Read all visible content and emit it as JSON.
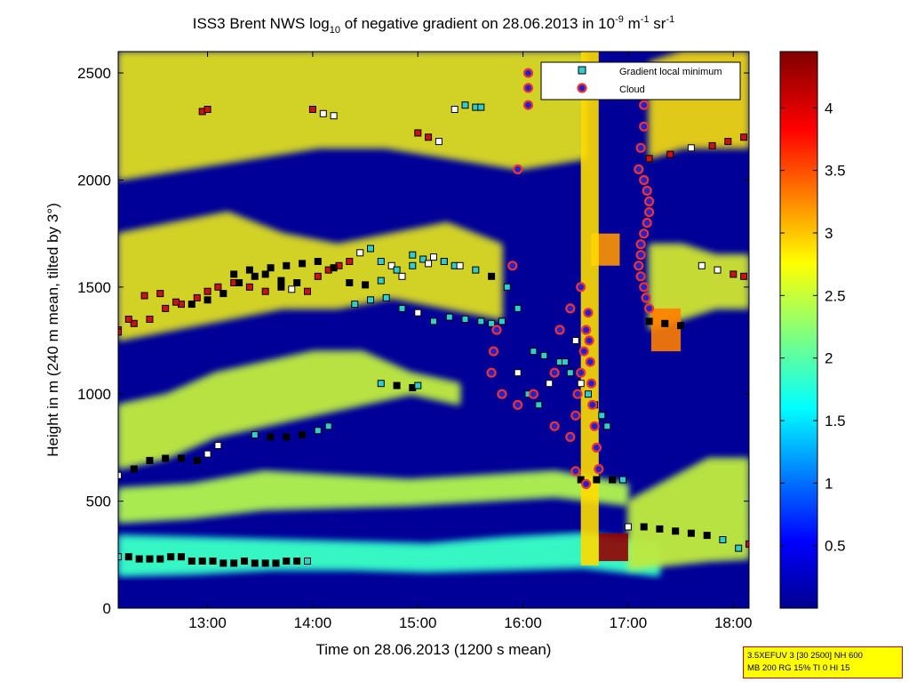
{
  "chart_data": {
    "type": "heatmap",
    "title": {
      "pre": "ISS3 Brent NWS log",
      "sub": "10",
      "mid": " of negative gradient on 28.06.2013 in 10",
      "exp1": "-9",
      "unit1": " m",
      "exp2": "-1",
      "unit2": " sr",
      "exp3": "-1"
    },
    "xlabel": "Time on 28.06.2013 (1200 s mean)",
    "ylabel": "Height in m (240 m mean, tilted by 3°)",
    "xlim": [
      12.15,
      18.15
    ],
    "ylim": [
      0,
      2600
    ],
    "xticks": [
      {
        "value": 13,
        "label": "13:00"
      },
      {
        "value": 14,
        "label": "14:00"
      },
      {
        "value": 15,
        "label": "15:00"
      },
      {
        "value": 16,
        "label": "16:00"
      },
      {
        "value": 17,
        "label": "17:00"
      },
      {
        "value": 18,
        "label": "18:00"
      }
    ],
    "yticks": [
      {
        "value": 0,
        "label": "0"
      },
      {
        "value": 500,
        "label": "500"
      },
      {
        "value": 1000,
        "label": "1000"
      },
      {
        "value": 1500,
        "label": "1500"
      },
      {
        "value": 2000,
        "label": "2000"
      },
      {
        "value": 2500,
        "label": "2500"
      }
    ],
    "colorbar": {
      "range": [
        0,
        4.45
      ],
      "ticks": [
        {
          "value": 0.5,
          "label": "0.5"
        },
        {
          "value": 1,
          "label": "1"
        },
        {
          "value": 1.5,
          "label": "1.5"
        },
        {
          "value": 2,
          "label": "2"
        },
        {
          "value": 2.5,
          "label": "2.5"
        },
        {
          "value": 3,
          "label": "3"
        },
        {
          "value": 3.5,
          "label": "3.5"
        },
        {
          "value": 4,
          "label": "4"
        }
      ]
    },
    "legend": {
      "placement": "top-right",
      "entries": [
        {
          "label": "Gradient local minimum",
          "marker": "square",
          "color": "#33cccc"
        },
        {
          "label": "Cloud",
          "marker": "circle",
          "color": "#dd0000"
        }
      ]
    },
    "colors": {
      "background_field": "#000098",
      "min_marker_white": "#ffffff",
      "min_marker_cyan": "#33cccc",
      "min_marker_red": "#cc1111",
      "min_marker_black": "#000000",
      "cloud_fill": "#2222cc",
      "cloud_ring": "#ee3333"
    },
    "field_bands": [
      {
        "x": [
          12.15,
          16.6
        ],
        "y0": [
          2000,
          2050,
          2100,
          2150,
          2150,
          2100,
          2050,
          2100
        ],
        "y1": [
          2600,
          2600,
          2600,
          2600,
          2600,
          2600,
          2600,
          2600
        ],
        "level": 2.5
      },
      {
        "x": [
          12.15,
          15.8
        ],
        "y0": [
          1250,
          1300,
          1350,
          1400,
          1400,
          1450,
          1400,
          1350
        ],
        "y1": [
          1750,
          1800,
          1850,
          1750,
          1700,
          1750,
          1800,
          1700
        ],
        "level": 2.5
      },
      {
        "x": [
          12.15,
          15.4
        ],
        "y0": [
          650,
          700,
          800,
          850,
          900,
          950,
          1000,
          950
        ],
        "y1": [
          950,
          1000,
          1100,
          1150,
          1200,
          1200,
          1100,
          1050
        ],
        "level": 2.3
      },
      {
        "x": [
          12.15,
          17.0
        ],
        "y0": [
          400,
          420,
          460,
          470,
          480,
          500,
          520,
          480
        ],
        "y1": [
          560,
          580,
          640,
          620,
          600,
          620,
          640,
          580
        ],
        "level": 2.2
      },
      {
        "x": [
          12.15,
          17.3
        ],
        "y0": [
          150,
          160,
          180,
          180,
          170,
          180,
          190,
          150
        ],
        "y1": [
          340,
          330,
          320,
          310,
          300,
          330,
          350,
          300
        ],
        "level": 1.6
      },
      {
        "x": [
          17.0,
          18.15
        ],
        "y0": [
          180,
          200,
          220,
          230
        ],
        "y1": [
          500,
          600,
          700,
          700
        ],
        "level": 2.3
      },
      {
        "x": [
          17.2,
          18.15
        ],
        "y0": [
          1300,
          1350,
          1400,
          1400
        ],
        "y1": [
          1700,
          1700,
          1650,
          1650
        ],
        "level": 2.4
      },
      {
        "x": [
          17.2,
          18.15
        ],
        "y0": [
          2100,
          2150,
          2150,
          2150
        ],
        "y1": [
          2550,
          2600,
          2600,
          2600
        ],
        "level": 2.6
      }
    ],
    "field_cells": [
      {
        "x": [
          16.65,
          16.92
        ],
        "y": [
          1600,
          1750
        ],
        "level": 3.2
      },
      {
        "x": [
          17.22,
          17.5
        ],
        "y": [
          1200,
          1400
        ],
        "level": 3.3
      },
      {
        "x": [
          16.72,
          17.0
        ],
        "y": [
          220,
          350
        ],
        "level": 4.35
      },
      {
        "x": [
          16.55,
          16.72
        ],
        "y": [
          200,
          2600
        ],
        "level": 2.9
      }
    ],
    "series": [
      {
        "name": "Gradient local minimum",
        "marker": "square",
        "x": [
          12.15,
          12.25,
          12.35,
          12.45,
          12.55,
          12.65,
          12.75,
          12.85,
          12.95,
          13.05,
          13.15,
          13.25,
          13.35,
          13.45,
          13.55,
          13.65,
          13.75,
          13.85,
          13.95,
          12.15,
          12.3,
          12.45,
          12.6,
          12.75,
          12.9,
          13.0,
          13.1,
          13.25,
          13.4,
          13.55,
          13.7,
          13.85,
          13.95,
          14.05,
          14.15,
          14.25,
          14.35,
          14.45,
          14.55,
          14.65,
          14.75,
          14.85,
          14.95,
          15.05,
          15.15,
          15.25,
          15.35,
          12.15,
          12.3,
          12.45,
          12.6,
          12.75,
          12.9,
          13.0,
          13.1,
          13.25,
          13.4,
          13.55,
          13.7,
          13.8,
          12.15,
          12.25,
          12.4,
          12.55,
          12.7,
          12.85,
          13.0,
          13.15,
          13.3,
          13.45,
          13.6,
          13.75,
          13.9,
          14.05,
          14.2,
          14.35,
          14.5,
          14.65,
          14.8,
          14.95,
          15.1,
          15.25,
          15.4,
          15.55,
          15.7,
          15.85,
          15.95,
          13.45,
          13.6,
          13.75,
          13.9,
          14.05,
          14.15,
          14.65,
          14.8,
          14.95,
          15.0,
          14.4,
          14.55,
          14.7,
          14.85,
          15.0,
          15.15,
          15.3,
          15.45,
          15.6,
          15.7,
          15.8,
          16.55,
          16.7,
          16.85,
          16.95,
          17.0,
          17.15,
          17.3,
          17.45,
          17.6,
          17.75,
          17.9,
          18.05,
          18.15,
          17.2,
          17.35,
          17.5,
          12.95,
          13.0,
          14.0,
          14.1,
          14.2,
          15.35,
          15.45,
          15.55,
          15.6,
          15.0,
          15.1,
          15.2,
          17.2,
          17.4,
          17.6,
          17.8,
          17.95,
          18.1,
          17.7,
          17.85,
          18.0,
          18.1,
          16.1,
          16.2,
          16.35,
          16.45,
          16.55,
          16.62,
          16.68,
          16.75,
          16.8,
          15.95,
          16.05,
          16.15,
          16.25,
          16.4,
          16.5
        ],
        "y": [
          240,
          240,
          230,
          230,
          230,
          240,
          240,
          220,
          220,
          220,
          210,
          210,
          220,
          210,
          210,
          210,
          220,
          220,
          220,
          620,
          650,
          690,
          700,
          700,
          690,
          720,
          760,
          1560,
          1580,
          1560,
          1530,
          1520,
          1480,
          1550,
          1580,
          1600,
          1620,
          1660,
          1680,
          1620,
          1600,
          1550,
          1600,
          1630,
          1640,
          1620,
          1600,
          1300,
          1330,
          1350,
          1400,
          1420,
          1450,
          1480,
          1500,
          1520,
          1500,
          1480,
          1500,
          1490,
          1290,
          1350,
          1460,
          1470,
          1430,
          1420,
          1440,
          1470,
          1520,
          1550,
          1590,
          1600,
          1610,
          1620,
          1590,
          1520,
          1510,
          1530,
          1580,
          1650,
          1610,
          1620,
          1600,
          1580,
          1550,
          1500,
          1400,
          810,
          800,
          800,
          810,
          830,
          850,
          1050,
          1040,
          1030,
          1040,
          1420,
          1440,
          1450,
          1400,
          1380,
          1340,
          1360,
          1350,
          1340,
          1330,
          1340,
          600,
          600,
          600,
          600,
          380,
          380,
          370,
          360,
          350,
          340,
          320,
          280,
          300,
          1340,
          1330,
          1320,
          2320,
          2330,
          2330,
          2310,
          2300,
          2330,
          2350,
          2340,
          2340,
          2220,
          2200,
          2180,
          2100,
          2120,
          2150,
          2160,
          2180,
          2200,
          1600,
          1580,
          1560,
          1550,
          1200,
          1180,
          1150,
          1100,
          1050,
          1000,
          950,
          900,
          850,
          1100,
          1000,
          950,
          1050,
          1150,
          1250
        ],
        "colors": [
          "c",
          "b",
          "b",
          "b",
          "b",
          "b",
          "b",
          "b",
          "b",
          "b",
          "b",
          "b",
          "b",
          "b",
          "b",
          "b",
          "b",
          "b",
          "c",
          "w",
          "b",
          "b",
          "b",
          "b",
          "b",
          "w",
          "w",
          "b",
          "b",
          "b",
          "b",
          "b",
          "r",
          "r",
          "r",
          "r",
          "r",
          "w",
          "c",
          "c",
          "w",
          "w",
          "c",
          "c",
          "w",
          "c",
          "c",
          "r",
          "r",
          "r",
          "r",
          "r",
          "r",
          "r",
          "r",
          "r",
          "r",
          "r",
          "b",
          "w",
          "r",
          "r",
          "r",
          "r",
          "r",
          "b",
          "b",
          "b",
          "b",
          "b",
          "b",
          "b",
          "b",
          "b",
          "b",
          "b",
          "b",
          "c",
          "c",
          "c",
          "w",
          "c",
          "w",
          "c",
          "b",
          "c",
          "c",
          "c",
          "b",
          "b",
          "b",
          "c",
          "c",
          "c",
          "b",
          "b",
          "c",
          "c",
          "c",
          "c",
          "c",
          "w",
          "c",
          "c",
          "c",
          "c",
          "c",
          "c",
          "b",
          "b",
          "b",
          "c",
          "w",
          "b",
          "b",
          "b",
          "b",
          "b",
          "c",
          "c",
          "r",
          "b",
          "b",
          "b",
          "r",
          "r",
          "r",
          "w",
          "w",
          "w",
          "c",
          "c",
          "c",
          "r",
          "r",
          "w",
          "r",
          "r",
          "w",
          "r",
          "r",
          "r",
          "w",
          "w",
          "r",
          "r",
          "c",
          "c",
          "c",
          "c",
          "w",
          "c",
          "c",
          "c",
          "c",
          "w",
          "c",
          "c",
          "w",
          "c",
          "w"
        ]
      },
      {
        "name": "Cloud",
        "marker": "circle",
        "x": [
          16.05,
          16.05,
          16.05,
          15.95,
          15.9,
          15.75,
          15.72,
          15.7,
          15.8,
          15.95,
          16.1,
          16.3,
          16.45,
          16.5,
          16.52,
          16.55,
          16.58,
          16.6,
          16.62,
          16.63,
          16.64,
          16.65,
          16.66,
          16.68,
          16.7,
          16.72,
          16.6,
          16.5,
          16.3,
          16.35,
          16.45,
          16.55,
          17.15,
          17.15,
          17.12,
          17.1,
          17.15,
          17.18,
          17.2,
          17.2,
          17.18,
          17.15,
          17.12,
          17.12,
          17.1,
          17.12,
          17.15,
          17.17,
          17.2
        ],
        "y": [
          2500,
          2430,
          2350,
          2050,
          1600,
          1300,
          1200,
          1100,
          1000,
          950,
          1000,
          850,
          800,
          900,
          1000,
          1100,
          1200,
          1300,
          1380,
          1250,
          1150,
          1050,
          950,
          850,
          750,
          650,
          580,
          640,
          1100,
          1300,
          1400,
          1500,
          2350,
          2250,
          2150,
          2050,
          2000,
          1950,
          1900,
          1850,
          1800,
          1750,
          1700,
          1650,
          1600,
          1550,
          1500,
          1450,
          1400
        ]
      }
    ]
  },
  "info_box": {
    "line1": "3.5XEFUV 3 [30 2500] NH 600",
    "line2": "MB 200 RG 15% TI 0 HI 15"
  }
}
